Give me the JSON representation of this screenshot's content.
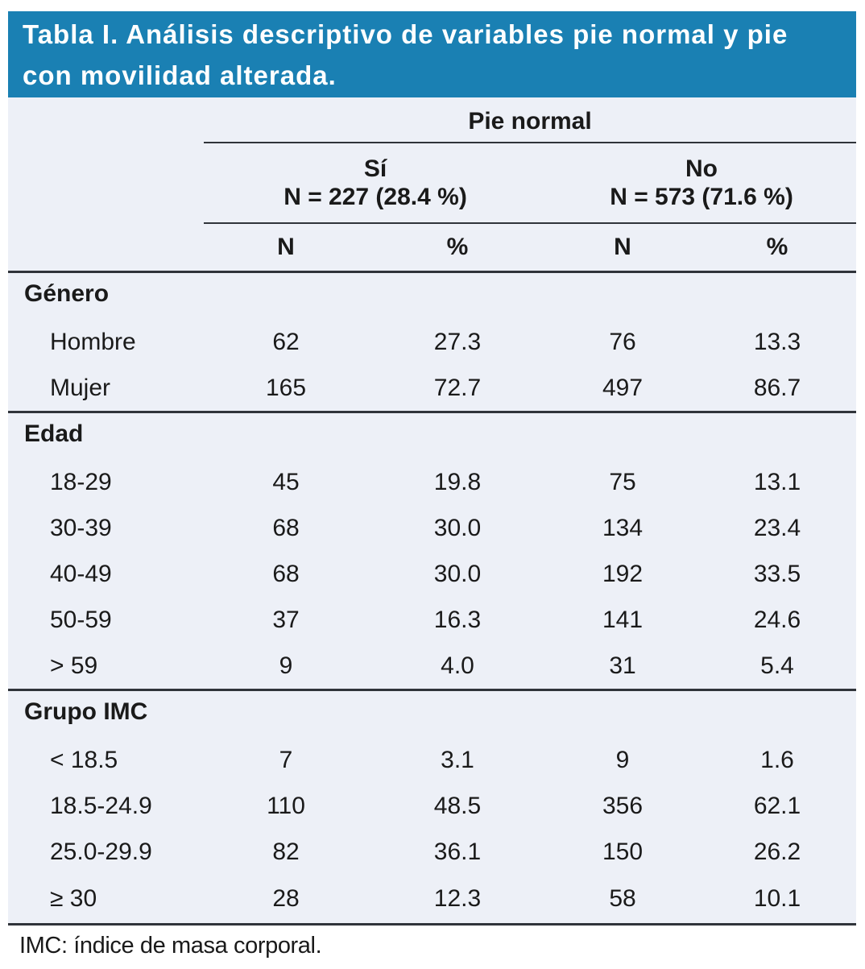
{
  "banner": {
    "title": "Tabla I. Análisis descriptivo de variables pie normal y pie con movilidad alterada.",
    "background_color": "#1a80b3",
    "text_color": "#ffffff"
  },
  "table": {
    "group_header": "Pie normal",
    "subgroups": [
      {
        "label": "Sí",
        "count_label": "N = 227 (28.4 %)"
      },
      {
        "label": "No",
        "count_label": "N = 573 (71.6 %)"
      }
    ],
    "column_headers": [
      "N",
      "%",
      "N",
      "%"
    ],
    "sections": [
      {
        "label": "Género",
        "rows": [
          {
            "label": "Hombre",
            "values": [
              "62",
              "27.3",
              "76",
              "13.3"
            ]
          },
          {
            "label": "Mujer",
            "values": [
              "165",
              "72.7",
              "497",
              "86.7"
            ]
          }
        ]
      },
      {
        "label": "Edad",
        "rows": [
          {
            "label": "18-29",
            "values": [
              "45",
              "19.8",
              "75",
              "13.1"
            ]
          },
          {
            "label": "30-39",
            "values": [
              "68",
              "30.0",
              "134",
              "23.4"
            ]
          },
          {
            "label": "40-49",
            "values": [
              "68",
              "30.0",
              "192",
              "33.5"
            ]
          },
          {
            "label": "50-59",
            "values": [
              "37",
              "16.3",
              "141",
              "24.6"
            ]
          },
          {
            "label": "> 59",
            "values": [
              "9",
              "4.0",
              "31",
              "5.4"
            ]
          }
        ]
      },
      {
        "label": "Grupo IMC",
        "rows": [
          {
            "label": "< 18.5",
            "values": [
              "7",
              "3.1",
              "9",
              "1.6"
            ]
          },
          {
            "label": "18.5-24.9",
            "values": [
              "110",
              "48.5",
              "356",
              "62.1"
            ]
          },
          {
            "label": "25.0-29.9",
            "values": [
              "82",
              "36.1",
              "150",
              "26.2"
            ]
          },
          {
            "label": "≥ 30",
            "values": [
              "28",
              "12.3",
              "58",
              "10.1"
            ]
          }
        ]
      }
    ]
  },
  "footnote": "IMC: índice de masa corporal.",
  "colors": {
    "panel_background": "#edf0f7",
    "rule_color": "#30343a",
    "body_text": "#1a1a1a"
  },
  "chart_data": {
    "type": "table",
    "title": "Tabla I. Análisis descriptivo de variables pie normal y pie con movilidad alterada.",
    "column_groups": [
      "Pie normal / Sí (N = 227, 28.4 %)",
      "Pie normal / No (N = 573, 71.6 %)"
    ],
    "columns": [
      "N",
      "%",
      "N",
      "%"
    ],
    "rows": [
      {
        "section": "Género",
        "category": "Hombre",
        "si_n": 62,
        "si_pct": 27.3,
        "no_n": 76,
        "no_pct": 13.3
      },
      {
        "section": "Género",
        "category": "Mujer",
        "si_n": 165,
        "si_pct": 72.7,
        "no_n": 497,
        "no_pct": 86.7
      },
      {
        "section": "Edad",
        "category": "18-29",
        "si_n": 45,
        "si_pct": 19.8,
        "no_n": 75,
        "no_pct": 13.1
      },
      {
        "section": "Edad",
        "category": "30-39",
        "si_n": 68,
        "si_pct": 30.0,
        "no_n": 134,
        "no_pct": 23.4
      },
      {
        "section": "Edad",
        "category": "40-49",
        "si_n": 68,
        "si_pct": 30.0,
        "no_n": 192,
        "no_pct": 33.5
      },
      {
        "section": "Edad",
        "category": "50-59",
        "si_n": 37,
        "si_pct": 16.3,
        "no_n": 141,
        "no_pct": 24.6
      },
      {
        "section": "Edad",
        "category": "> 59",
        "si_n": 9,
        "si_pct": 4.0,
        "no_n": 31,
        "no_pct": 5.4
      },
      {
        "section": "Grupo IMC",
        "category": "< 18.5",
        "si_n": 7,
        "si_pct": 3.1,
        "no_n": 9,
        "no_pct": 1.6
      },
      {
        "section": "Grupo IMC",
        "category": "18.5-24.9",
        "si_n": 110,
        "si_pct": 48.5,
        "no_n": 356,
        "no_pct": 62.1
      },
      {
        "section": "Grupo IMC",
        "category": "25.0-29.9",
        "si_n": 82,
        "si_pct": 36.1,
        "no_n": 150,
        "no_pct": 26.2
      },
      {
        "section": "Grupo IMC",
        "category": "≥ 30",
        "si_n": 28,
        "si_pct": 12.3,
        "no_n": 58,
        "no_pct": 10.1
      }
    ],
    "footnote": "IMC: índice de masa corporal."
  }
}
